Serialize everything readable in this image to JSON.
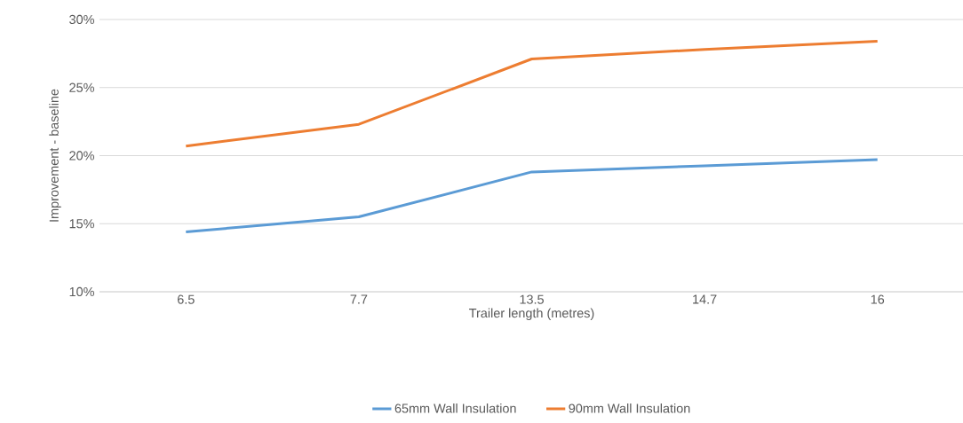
{
  "chart_data": {
    "type": "line",
    "xlabel": "Trailer length (metres)",
    "ylabel": "Improvement - baseline",
    "categories": [
      "6.5",
      "7.7",
      "13.5",
      "14.7",
      "16"
    ],
    "series": [
      {
        "name": "65mm Wall Insulation",
        "color": "#5b9bd5",
        "values": [
          14.4,
          15.5,
          18.8,
          19.25,
          19.7
        ]
      },
      {
        "name": "90mm Wall Insulation",
        "color": "#ed7d31",
        "values": [
          20.7,
          22.3,
          27.1,
          27.8,
          28.4
        ]
      }
    ],
    "ylim": [
      10,
      30
    ],
    "yticks": [
      {
        "value": 10,
        "label": "10%"
      },
      {
        "value": 15,
        "label": "15%"
      },
      {
        "value": 20,
        "label": "20%"
      },
      {
        "value": 25,
        "label": "25%"
      },
      {
        "value": 30,
        "label": "30%"
      }
    ],
    "grid": "y",
    "legend": "bottom"
  }
}
